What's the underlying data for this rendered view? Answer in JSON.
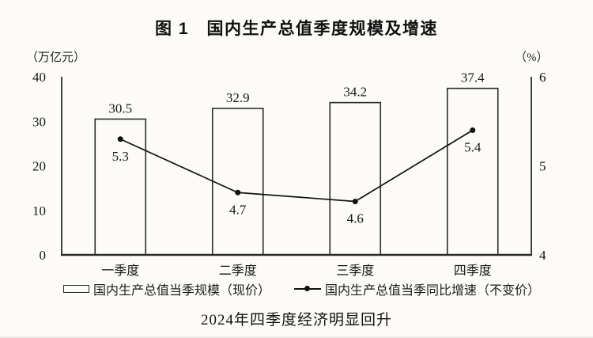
{
  "figure": {
    "title": "图 1　国内生产总值季度规模及增速",
    "left_unit": "（万亿元）",
    "right_unit": "（%）",
    "legend": [
      "国内生产总值当季规模（现价）",
      "国内生产总值当季同比增速（不变价）"
    ],
    "caption": "2024年四季度经济明显回升",
    "ink_color": "#1a1a1a",
    "background_color": "#fcfbf8"
  },
  "chart_data": {
    "type": "bar",
    "title": "图 1　国内生产总值季度规模及增速",
    "categories": [
      "一季度",
      "二季度",
      "三季度",
      "四季度"
    ],
    "series": [
      {
        "name": "国内生产总值当季规模（现价）",
        "type": "bar",
        "axis": "left",
        "values": [
          30.5,
          32.9,
          34.2,
          37.4
        ]
      },
      {
        "name": "国内生产总值当季同比增速（不变价）",
        "type": "line",
        "axis": "right",
        "values": [
          5.3,
          4.7,
          4.6,
          5.4
        ]
      }
    ],
    "left_axis": {
      "unit": "（万亿元）",
      "range": [
        0,
        40
      ],
      "ticks": [
        0,
        10,
        20,
        30,
        40
      ]
    },
    "right_axis": {
      "unit": "（%）",
      "range": [
        4,
        6
      ],
      "ticks": [
        4,
        5,
        6
      ]
    },
    "grid": false,
    "legend_position": "bottom",
    "caption": "2024年四季度经济明显回升"
  }
}
